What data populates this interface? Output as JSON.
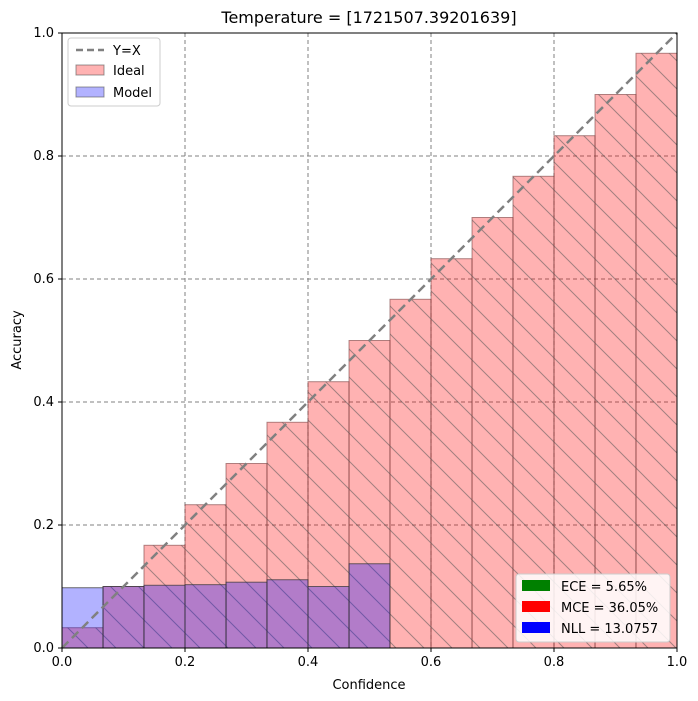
{
  "chart_data": {
    "type": "bar",
    "title": "Temperature = [1721507.39201639]",
    "xlabel": "Confidence",
    "ylabel": "Accuracy",
    "xlim": [
      0,
      1
    ],
    "ylim": [
      0,
      1
    ],
    "x_ticks": [
      "0.0",
      "0.2",
      "0.4",
      "0.6",
      "0.8",
      "1.0"
    ],
    "y_ticks": [
      "0.0",
      "0.2",
      "0.4",
      "0.6",
      "0.8",
      "1.0"
    ],
    "grid": true,
    "bin_edges": [
      0,
      0.0667,
      0.1333,
      0.2,
      0.2667,
      0.3333,
      0.4,
      0.4667,
      0.5333,
      0.6,
      0.6667,
      0.7333,
      0.8,
      0.8667,
      0.9333,
      1.0
    ],
    "reference_line": {
      "name": "Y=X",
      "points": [
        [
          0,
          0
        ],
        [
          1,
          1
        ]
      ],
      "color": "#808080",
      "style": "dashed"
    },
    "series": [
      {
        "name": "Ideal",
        "color": "#ff0000",
        "alpha": 0.3,
        "hatch": "\\",
        "values": [
          0.033,
          0.1,
          0.167,
          0.233,
          0.3,
          0.367,
          0.433,
          0.5,
          0.567,
          0.633,
          0.7,
          0.767,
          0.833,
          0.9,
          0.967
        ]
      },
      {
        "name": "Model",
        "color": "#0000ff",
        "alpha": 0.3,
        "values": [
          0.098,
          0.1,
          0.102,
          0.103,
          0.107,
          0.111,
          0.1,
          0.137,
          0,
          0,
          0,
          0,
          0,
          0,
          0
        ]
      }
    ],
    "legend": {
      "placement": "top-left",
      "items": [
        {
          "label": "Y=X",
          "kind": "line",
          "color": "#808080"
        },
        {
          "label": "Ideal",
          "kind": "patch",
          "color": "#ff0000"
        },
        {
          "label": "Model",
          "kind": "patch",
          "color": "#0000ff"
        }
      ]
    },
    "metrics_legend": {
      "placement": "bottom-right",
      "items": [
        {
          "label": "ECE = 5.65%",
          "color": "#008000"
        },
        {
          "label": "MCE = 36.05%",
          "color": "#ff0000"
        },
        {
          "label": "NLL = 13.0757",
          "color": "#0000ff"
        }
      ]
    }
  }
}
